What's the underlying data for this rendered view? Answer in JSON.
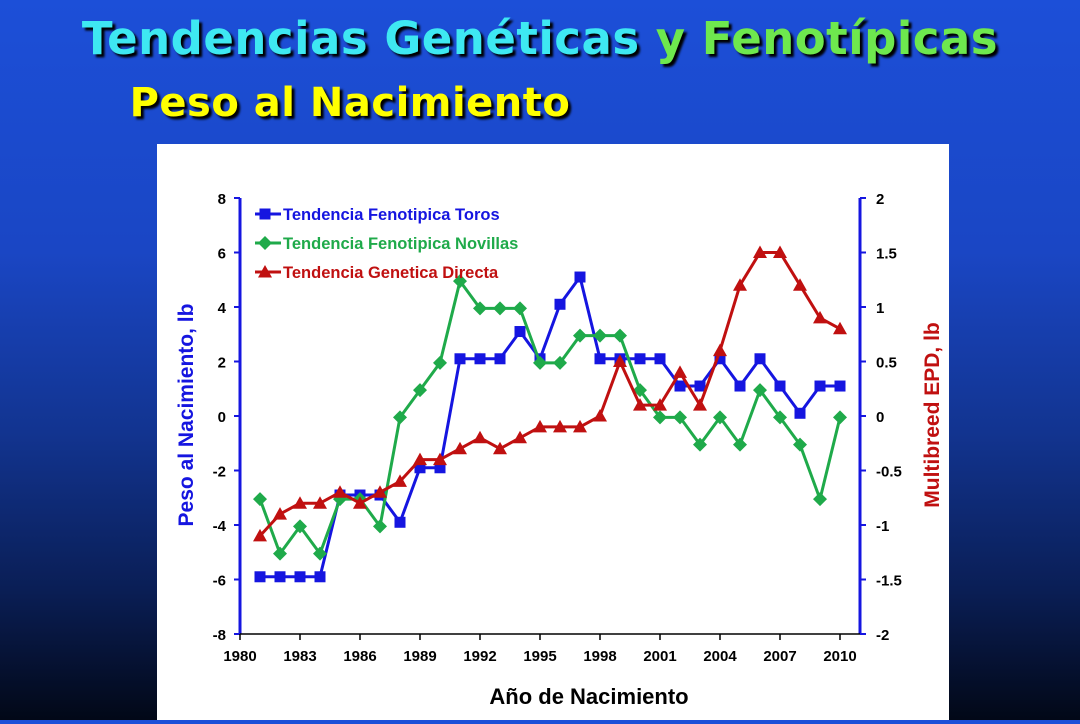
{
  "header": {
    "line1_part1": "Tendencias Genéticas ",
    "line1_part2": "y Fenotípicas",
    "line2": "Peso al Nacimiento"
  },
  "colors": {
    "toros": "#1515e0",
    "novillas": "#1faa4a",
    "genetica": "#c01010",
    "axis_left": "#1515e0",
    "axis_right": "#c01010"
  },
  "chart_data": {
    "type": "line",
    "title": "",
    "xlabel": "Año de Nacimiento",
    "ylabel_left": "Peso al Nacimiento, lb",
    "ylabel_right": "Multibreed EPD, lb",
    "xlim": [
      1980,
      2011
    ],
    "ylim_left": [
      -8,
      8
    ],
    "ylim_right": [
      -2,
      2
    ],
    "xticks": [
      1980,
      1983,
      1986,
      1989,
      1992,
      1995,
      1998,
      2001,
      2004,
      2007,
      2010
    ],
    "yticks_left": [
      -8,
      -6,
      -4,
      -2,
      0,
      2,
      4,
      6,
      8
    ],
    "yticks_right": [
      -2,
      -1.5,
      -1,
      -0.5,
      0,
      0.5,
      1,
      1.5,
      2
    ],
    "legend_position": "top-left",
    "grid": false,
    "series": [
      {
        "name": "Tendencia Fenotipica Toros",
        "axis": "left",
        "marker": "square",
        "x": [
          1981,
          1982,
          1983,
          1984,
          1985,
          1986,
          1987,
          1988,
          1989,
          1990,
          1991,
          1992,
          1993,
          1994,
          1995,
          1996,
          1997,
          1998,
          1999,
          2000,
          2001,
          2002,
          2003,
          2004,
          2005,
          2006,
          2007,
          2008,
          2009,
          2010
        ],
        "y": [
          -5.9,
          -5.9,
          -5.9,
          -5.9,
          -2.9,
          -2.9,
          -2.9,
          -3.9,
          -1.9,
          -1.9,
          2.1,
          2.1,
          2.1,
          3.1,
          2.1,
          4.1,
          5.1,
          2.1,
          2.1,
          2.1,
          2.1,
          1.1,
          1.1,
          2.1,
          1.1,
          2.1,
          1.1,
          0.1,
          1.1,
          1.1
        ]
      },
      {
        "name": "Tendencia Fenotipica Novillas",
        "axis": "left",
        "marker": "diamond",
        "x": [
          1981,
          1982,
          1983,
          1984,
          1985,
          1986,
          1987,
          1988,
          1989,
          1990,
          1991,
          1992,
          1993,
          1994,
          1995,
          1996,
          1997,
          1998,
          1999,
          2000,
          2001,
          2002,
          2003,
          2004,
          2005,
          2006,
          2007,
          2008,
          2009,
          2010
        ],
        "y": [
          -3.05,
          -5.05,
          -4.05,
          -5.05,
          -3.05,
          -3.05,
          -4.05,
          -0.05,
          0.95,
          1.95,
          4.95,
          3.95,
          3.95,
          3.95,
          1.95,
          1.95,
          2.95,
          2.95,
          2.95,
          0.95,
          -0.05,
          -0.05,
          -1.05,
          -0.05,
          -1.05,
          0.95,
          -0.05,
          -1.05,
          -3.05,
          -0.05
        ]
      },
      {
        "name": "Tendencia Genetica Directa",
        "axis": "right",
        "marker": "triangle",
        "x": [
          1981,
          1982,
          1983,
          1984,
          1985,
          1986,
          1987,
          1988,
          1989,
          1990,
          1991,
          1992,
          1993,
          1994,
          1995,
          1996,
          1997,
          1998,
          1999,
          2000,
          2001,
          2002,
          2003,
          2004,
          2005,
          2006,
          2007,
          2008,
          2009,
          2010
        ],
        "y": [
          -1.1,
          -0.9,
          -0.8,
          -0.8,
          -0.7,
          -0.8,
          -0.7,
          -0.6,
          -0.4,
          -0.4,
          -0.3,
          -0.2,
          -0.3,
          -0.2,
          -0.1,
          -0.1,
          -0.1,
          0.0,
          0.5,
          0.1,
          0.1,
          0.4,
          0.1,
          0.6,
          1.2,
          1.5,
          1.5,
          1.2,
          0.9,
          0.8
        ]
      }
    ]
  }
}
